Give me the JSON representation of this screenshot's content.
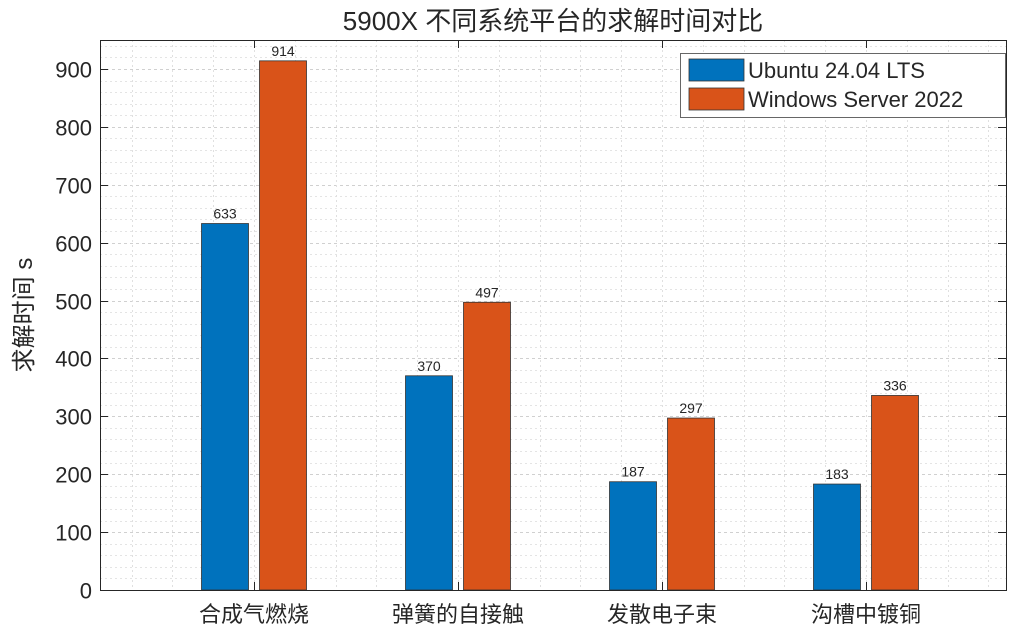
{
  "chart_data": {
    "type": "bar",
    "title": "5900X 不同系统平台的求解时间对比",
    "xlabel": "",
    "ylabel": "求解时间 s",
    "categories": [
      "合成气燃烧",
      "弹簧的自接触",
      "发散电子束",
      "沟槽中镀铜"
    ],
    "series": [
      {
        "name": "Ubuntu 24.04 LTS",
        "color": "#0072BD",
        "values": [
          633,
          370,
          187,
          183
        ]
      },
      {
        "name": "Windows Server 2022",
        "color": "#D95319",
        "values": [
          914,
          497,
          297,
          336
        ]
      }
    ],
    "ylim": [
      0,
      950
    ],
    "yticks": [
      0,
      100,
      200,
      300,
      400,
      500,
      600,
      700,
      800,
      900
    ],
    "grid": true,
    "minor_grid": true,
    "legend_position": "top-right",
    "data_labels": true
  }
}
